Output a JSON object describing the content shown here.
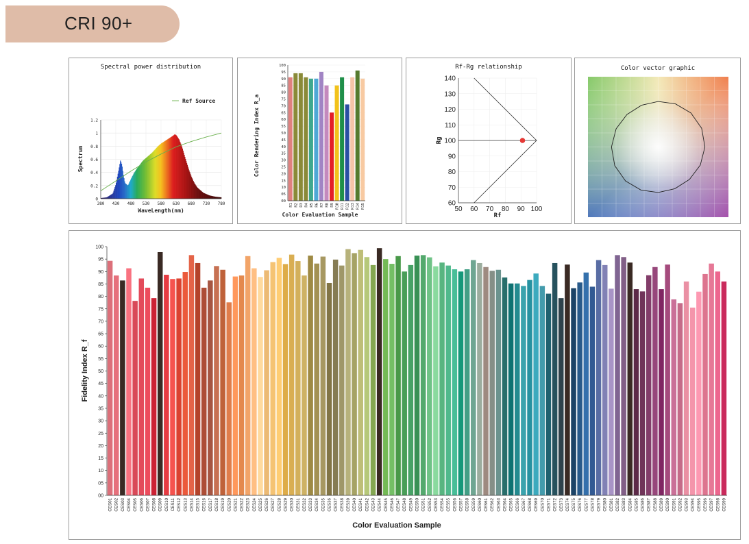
{
  "header": {
    "title": "CRI 90+"
  },
  "colors": {
    "badge": "#dfbca8",
    "ref_line": "#6ab04c",
    "marker": "#e53935"
  },
  "chart_data": [
    {
      "type": "area",
      "title": "Spectral power distribution",
      "xlabel": "WaveLength(nm)",
      "ylabel": "Spectrum",
      "legend": [
        "Ref Source"
      ],
      "xlim": [
        380,
        780
      ],
      "ylim": [
        0,
        1.2
      ],
      "xticks": [
        380,
        430,
        480,
        530,
        580,
        630,
        680,
        730,
        780
      ],
      "yticks": [
        0,
        0.2,
        0.4,
        0.6,
        0.8,
        1,
        1.2
      ],
      "spectrum": {
        "x": [
          380,
          400,
          420,
          430,
          440,
          445,
          450,
          455,
          460,
          470,
          480,
          490,
          500,
          510,
          520,
          530,
          540,
          550,
          560,
          570,
          580,
          590,
          600,
          610,
          620,
          625,
          630,
          640,
          650,
          660,
          670,
          680,
          690,
          700,
          720,
          740,
          760,
          780
        ],
        "y": [
          0.01,
          0.02,
          0.08,
          0.22,
          0.45,
          0.58,
          0.52,
          0.36,
          0.24,
          0.2,
          0.3,
          0.39,
          0.46,
          0.52,
          0.58,
          0.62,
          0.66,
          0.7,
          0.75,
          0.8,
          0.84,
          0.87,
          0.9,
          0.93,
          0.96,
          0.98,
          0.97,
          0.9,
          0.78,
          0.62,
          0.47,
          0.34,
          0.24,
          0.17,
          0.09,
          0.05,
          0.03,
          0.02
        ]
      },
      "ref_source": {
        "x": [
          380,
          430,
          480,
          530,
          580,
          630,
          680,
          730,
          780
        ],
        "y": [
          0.12,
          0.27,
          0.42,
          0.56,
          0.68,
          0.79,
          0.87,
          0.94,
          1.0
        ]
      }
    },
    {
      "type": "bar",
      "xlabel": "Color Evaluation Sample",
      "ylabel": "Color Rendering Index R_a",
      "ylim": [
        0,
        100
      ],
      "yticks": [
        0,
        5,
        10,
        15,
        20,
        25,
        30,
        35,
        40,
        45,
        50,
        55,
        60,
        65,
        70,
        75,
        80,
        85,
        90,
        95,
        100
      ],
      "categories": [
        "R1",
        "R2",
        "R3",
        "R4",
        "R5",
        "R6",
        "R7",
        "R8",
        "R9",
        "R10",
        "R11",
        "R12",
        "R13",
        "R14",
        "R15"
      ],
      "values": [
        91,
        94,
        94,
        91,
        90,
        90,
        95,
        85,
        65,
        85,
        91,
        71,
        91,
        96,
        90
      ],
      "colors": [
        "#e0817f",
        "#8a8a38",
        "#8a8a38",
        "#8a8a38",
        "#3fa88e",
        "#4fa8d6",
        "#a184c4",
        "#c489bd",
        "#e41f26",
        "#f2c21b",
        "#1f8f49",
        "#2a4fa3",
        "#f6c4a8",
        "#557a2e",
        "#f8caa2"
      ]
    },
    {
      "type": "scatter",
      "title": "Rf-Rg relationship",
      "xlabel": "Rf",
      "ylabel": "Rg",
      "xlim": [
        50,
        100
      ],
      "ylim": [
        60,
        140
      ],
      "xticks": [
        50,
        60,
        70,
        80,
        90,
        100
      ],
      "yticks": [
        60,
        70,
        80,
        90,
        100,
        110,
        120,
        130,
        140
      ],
      "boundary": {
        "x": [
          60,
          100,
          60
        ],
        "y": [
          140,
          100,
          60
        ]
      },
      "reference_line": {
        "x": [
          50,
          100
        ],
        "y": [
          100,
          100
        ]
      },
      "point": {
        "x": 91,
        "y": 100
      }
    },
    {
      "type": "other",
      "title": "Color vector graphic",
      "vector_points_count": 16
    },
    {
      "type": "bar",
      "xlabel": "Color Evaluation Sample",
      "ylabel": "Fidelity Index R_f",
      "ylim": [
        0,
        100
      ],
      "yticks": [
        0,
        5,
        10,
        15,
        20,
        25,
        30,
        35,
        40,
        45,
        50,
        55,
        60,
        65,
        70,
        75,
        80,
        85,
        90,
        95,
        100
      ],
      "yticklabels": [
        "00",
        "05",
        "10",
        "15",
        "20",
        "25",
        "30",
        "35",
        "40",
        "45",
        "50",
        "55",
        "60",
        "65",
        "70",
        "75",
        "80",
        "85",
        "90",
        "95",
        "100"
      ],
      "categories": [
        "CES01",
        "CES02",
        "CES03",
        "CES04",
        "CES05",
        "CES06",
        "CES07",
        "CES08",
        "CES09",
        "CES10",
        "CES11",
        "CES12",
        "CES13",
        "CES14",
        "CES15",
        "CES16",
        "CES17",
        "CES18",
        "CES19",
        "CES20",
        "CES21",
        "CES22",
        "CES23",
        "CES24",
        "CES25",
        "CES26",
        "CES27",
        "CES28",
        "CES29",
        "CES30",
        "CES31",
        "CES32",
        "CES33",
        "CES34",
        "CES35",
        "CES36",
        "CES37",
        "CES38",
        "CES39",
        "CES40",
        "CES41",
        "CES42",
        "CES43",
        "CES44",
        "CES45",
        "CES46",
        "CES47",
        "CES48",
        "CES49",
        "CES50",
        "CES51",
        "CES52",
        "CES53",
        "CES54",
        "CES55",
        "CES56",
        "CES57",
        "CES58",
        "CES59",
        "CES60",
        "CES61",
        "CES62",
        "CES63",
        "CES64",
        "CES65",
        "CES66",
        "CES67",
        "CES68",
        "CES69",
        "CES70",
        "CES71",
        "CES72",
        "CES73",
        "CES74",
        "CES75",
        "CES76",
        "CES77",
        "CES78",
        "CES79",
        "CES80",
        "CES81",
        "CES82",
        "CES83",
        "CES84",
        "CES85",
        "CES86",
        "CES87",
        "CES88",
        "CES89",
        "CES90",
        "CES91",
        "CES92",
        "CES93",
        "CES94",
        "CES95",
        "CES96",
        "CES97",
        "CES98",
        "CES99"
      ],
      "values": [
        94.3,
        88.4,
        86.4,
        91.3,
        78.2,
        87.2,
        83.5,
        79.3,
        97.8,
        88.7,
        87.0,
        87.2,
        89.8,
        96.6,
        93.4,
        83.5,
        86.4,
        92.2,
        90.7,
        77.6,
        88.0,
        88.4,
        96.2,
        91.3,
        87.8,
        90.5,
        93.8,
        95.5,
        93.0,
        96.8,
        94.2,
        88.4,
        96.4,
        93.2,
        96.0,
        85.4,
        94.8,
        92.4,
        99.0,
        97.4,
        98.7,
        95.8,
        92.6,
        99.4,
        95.0,
        93.1,
        96.2,
        90.0,
        92.6,
        96.4,
        96.6,
        95.7,
        92.1,
        93.6,
        92.4,
        90.9,
        90.0,
        90.9,
        94.6,
        93.4,
        91.8,
        90.3,
        90.7,
        87.6,
        85.2,
        85.2,
        84.2,
        86.6,
        89.2,
        84.2,
        81.1,
        93.4,
        79.3,
        92.8,
        83.3,
        85.6,
        89.6,
        83.9,
        94.6,
        92.6,
        83.1,
        96.6,
        95.8,
        93.6,
        82.9,
        82.0,
        88.5,
        91.8,
        82.9,
        92.8,
        78.8,
        77.3,
        86.0,
        75.5,
        81.9,
        89.0,
        93.2,
        90.0,
        86.0
      ]
    }
  ]
}
